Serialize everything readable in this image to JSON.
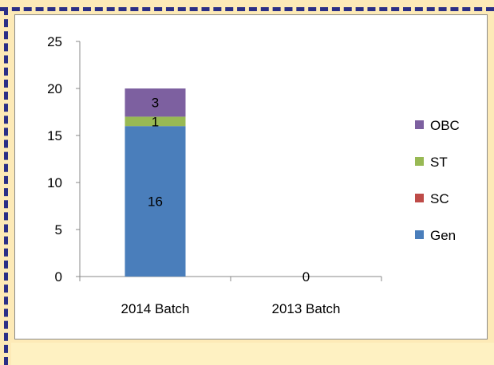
{
  "chart_data": {
    "type": "bar",
    "stacked": true,
    "categories": [
      "2014 Batch",
      "2013 Batch"
    ],
    "series": [
      {
        "name": "Gen",
        "values": [
          16,
          0
        ],
        "color": "#4a7ebb"
      },
      {
        "name": "SC",
        "values": [
          0,
          0
        ],
        "color": "#be4b48"
      },
      {
        "name": "ST",
        "values": [
          1,
          0
        ],
        "color": "#98b954"
      },
      {
        "name": "OBC",
        "values": [
          3,
          0
        ],
        "color": "#7d60a0"
      }
    ],
    "data_labels": [
      {
        "category": "2014 Batch",
        "series": "Gen",
        "text": "16"
      },
      {
        "category": "2014 Batch",
        "series": "ST",
        "text": "1"
      },
      {
        "category": "2014 Batch",
        "series": "OBC",
        "text": "3"
      },
      {
        "category": "2013 Batch",
        "series": "Gen",
        "text": "0"
      }
    ],
    "y_ticks": [
      "0",
      "5",
      "10",
      "15",
      "20",
      "25"
    ],
    "ylim": [
      0,
      25
    ],
    "legend_position": "right",
    "legend_order": [
      "OBC",
      "ST",
      "SC",
      "Gen"
    ],
    "grid": false
  },
  "colors": {
    "page_background": "#fdeab7",
    "frame_dash": "#2b2f86"
  }
}
